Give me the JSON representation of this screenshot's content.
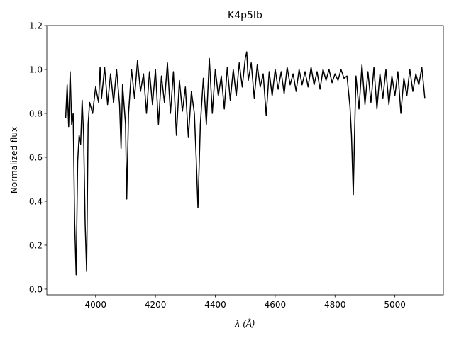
{
  "chart_data": {
    "type": "line",
    "title": "K4p5Ib",
    "x_label": "λ (Å)",
    "y_label": "Normalized flux",
    "x": [
      3900,
      3905,
      3910,
      3915,
      3920,
      3925,
      3930,
      3935,
      3940,
      3945,
      3950,
      3955,
      3960,
      3965,
      3970,
      3975,
      3980,
      3990,
      4000,
      4010,
      4015,
      4020,
      4030,
      4040,
      4050,
      4060,
      4070,
      4080,
      4085,
      4090,
      4100,
      4104,
      4110,
      4120,
      4130,
      4140,
      4150,
      4160,
      4170,
      4180,
      4190,
      4200,
      4210,
      4220,
      4230,
      4240,
      4250,
      4260,
      4270,
      4280,
      4290,
      4300,
      4310,
      4320,
      4330,
      4336,
      4342,
      4350,
      4360,
      4370,
      4380,
      4390,
      4400,
      4410,
      4420,
      4430,
      4440,
      4450,
      4460,
      4470,
      4480,
      4490,
      4500,
      4505,
      4510,
      4520,
      4530,
      4540,
      4550,
      4560,
      4570,
      4580,
      4590,
      4600,
      4610,
      4620,
      4630,
      4640,
      4650,
      4660,
      4670,
      4680,
      4690,
      4700,
      4710,
      4720,
      4730,
      4740,
      4750,
      4760,
      4770,
      4780,
      4790,
      4800,
      4810,
      4820,
      4830,
      4840,
      4850,
      4855,
      4861,
      4866,
      4870,
      4880,
      4890,
      4900,
      4910,
      4920,
      4930,
      4940,
      4950,
      4960,
      4970,
      4980,
      4990,
      5000,
      5010,
      5020,
      5030,
      5040,
      5050,
      5060,
      5070,
      5080,
      5090,
      5100
    ],
    "series": [
      {
        "color": "#000000",
        "values": [
          0.78,
          0.93,
          0.74,
          0.99,
          0.75,
          0.8,
          0.3,
          0.065,
          0.58,
          0.7,
          0.66,
          0.86,
          0.7,
          0.3,
          0.08,
          0.75,
          0.85,
          0.8,
          0.92,
          0.85,
          1.01,
          0.87,
          1.01,
          0.84,
          0.98,
          0.85,
          1.0,
          0.84,
          0.64,
          0.93,
          0.75,
          0.41,
          0.8,
          1.0,
          0.87,
          1.04,
          0.9,
          0.98,
          0.8,
          0.99,
          0.84,
          1.0,
          0.75,
          0.97,
          0.85,
          1.03,
          0.8,
          0.99,
          0.7,
          0.95,
          0.81,
          0.92,
          0.69,
          0.9,
          0.8,
          0.6,
          0.37,
          0.75,
          0.96,
          0.75,
          1.05,
          0.8,
          1.0,
          0.88,
          0.97,
          0.82,
          1.01,
          0.86,
          1.0,
          0.88,
          1.03,
          0.92,
          1.05,
          1.08,
          0.95,
          1.03,
          0.87,
          1.02,
          0.92,
          0.98,
          0.79,
          0.99,
          0.88,
          1.0,
          0.91,
          0.99,
          0.89,
          1.01,
          0.93,
          0.98,
          0.9,
          1.0,
          0.93,
          0.99,
          0.92,
          1.01,
          0.93,
          0.99,
          0.91,
          1.0,
          0.95,
          1.0,
          0.94,
          0.98,
          0.95,
          1.0,
          0.96,
          0.97,
          0.83,
          0.7,
          0.43,
          0.75,
          0.97,
          0.82,
          1.02,
          0.84,
          0.99,
          0.85,
          1.01,
          0.82,
          0.98,
          0.87,
          1.0,
          0.84,
          0.97,
          0.88,
          0.99,
          0.8,
          0.96,
          0.88,
          1.0,
          0.9,
          0.98,
          0.93,
          1.01,
          0.87
        ]
      }
    ],
    "xlim": [
      3837,
      5162
    ],
    "ylim": [
      -0.026,
      1.2
    ],
    "xticks": [
      4000,
      4200,
      4400,
      4600,
      4800,
      5000
    ],
    "yticks": [
      {
        "value": 0,
        "label": "0.0"
      },
      0.2,
      0.4,
      0.6,
      0.8,
      {
        "value": 1,
        "label": "1.0"
      },
      1.2
    ]
  }
}
